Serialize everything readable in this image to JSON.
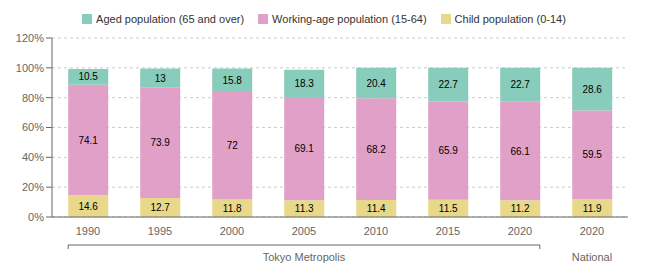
{
  "chart_data": {
    "type": "bar",
    "stacked": true,
    "categories": [
      "1990",
      "1995",
      "2000",
      "2005",
      "2010",
      "2015",
      "2020",
      "2020"
    ],
    "series": [
      {
        "name": "Child population (0-14)",
        "color": "#e8d88a",
        "values": [
          14.6,
          12.7,
          11.8,
          11.3,
          11.4,
          11.5,
          11.2,
          11.9
        ]
      },
      {
        "name": "Working-age population (15-64)",
        "color": "#e0a0c8",
        "values": [
          74.1,
          73.9,
          72.0,
          69.1,
          68.2,
          65.9,
          66.1,
          59.5
        ]
      },
      {
        "name": "Aged population (65 and over)",
        "color": "#88ccbb",
        "values": [
          10.5,
          13.0,
          15.8,
          18.3,
          20.4,
          22.7,
          22.7,
          28.6
        ]
      }
    ],
    "ylim": [
      0,
      120
    ],
    "yticks": [
      {
        "value": 0,
        "label": "0%"
      },
      {
        "value": 20,
        "label": "20%"
      },
      {
        "value": 40,
        "label": "40%"
      },
      {
        "value": 60,
        "label": "60%"
      },
      {
        "value": 80,
        "label": "80%"
      },
      {
        "value": 100,
        "label": "100%"
      },
      {
        "value": 120,
        "label": "120%"
      }
    ],
    "grid": true,
    "legend": "top",
    "data_labels": true,
    "annotations": [
      "Tokyo Metropolis",
      "National"
    ]
  }
}
